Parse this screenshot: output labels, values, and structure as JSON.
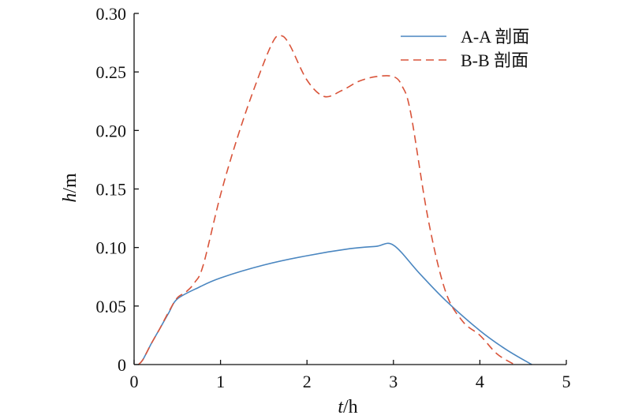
{
  "chart_data": {
    "type": "line",
    "xlabel_var": "t",
    "xlabel_unit": "/h",
    "ylabel_var": "h",
    "ylabel_unit": "/m",
    "xlim": [
      0,
      5
    ],
    "ylim": [
      0,
      0.3
    ],
    "xticks": [
      0,
      1,
      2,
      3,
      4,
      5
    ],
    "xtick_labels": [
      "0",
      "1",
      "2",
      "3",
      "4",
      "5"
    ],
    "yticks": [
      0,
      0.05,
      0.1,
      0.15,
      0.2,
      0.25,
      0.3
    ],
    "ytick_labels": [
      "0",
      "0.05",
      "0.10",
      "0.15",
      "0.20",
      "0.25",
      "0.30"
    ],
    "grid": false,
    "legend_position": "top-right",
    "series": [
      {
        "name": "A-A 剖面",
        "color": "#4a86c0",
        "style": "solid",
        "x": [
          0.05,
          0.1,
          0.2,
          0.3,
          0.4,
          0.5,
          0.75,
          1.0,
          1.5,
          2.0,
          2.5,
          2.8,
          3.0,
          3.3,
          3.6,
          4.0,
          4.3,
          4.6
        ],
        "y": [
          0.0,
          0.004,
          0.018,
          0.031,
          0.044,
          0.056,
          0.066,
          0.074,
          0.085,
          0.093,
          0.099,
          0.101,
          0.102,
          0.078,
          0.055,
          0.029,
          0.013,
          0.0
        ]
      },
      {
        "name": "B-B 剖面",
        "color": "#d9543a",
        "style": "dashed",
        "x": [
          0.05,
          0.1,
          0.2,
          0.3,
          0.4,
          0.5,
          0.6,
          0.7,
          0.8,
          1.0,
          1.2,
          1.4,
          1.6,
          1.7,
          1.8,
          2.0,
          2.2,
          2.4,
          2.6,
          2.8,
          3.0,
          3.1,
          3.2,
          3.4,
          3.6,
          3.8,
          4.0,
          4.2,
          4.4
        ],
        "y": [
          0.0,
          0.004,
          0.018,
          0.031,
          0.045,
          0.057,
          0.062,
          0.07,
          0.085,
          0.145,
          0.195,
          0.238,
          0.275,
          0.281,
          0.273,
          0.243,
          0.229,
          0.234,
          0.242,
          0.246,
          0.246,
          0.238,
          0.215,
          0.125,
          0.063,
          0.037,
          0.025,
          0.009,
          0.0
        ]
      }
    ]
  }
}
